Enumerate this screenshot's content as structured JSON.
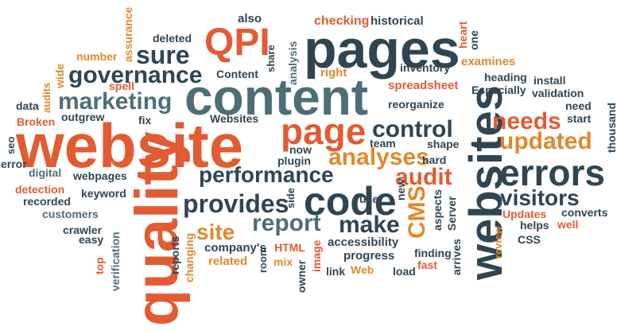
{
  "palette": {
    "dark": "#2f4553",
    "red": "#e25b33",
    "orange": "#e0892b",
    "slate": "#4e6e77"
  },
  "words": {
    "website": "website",
    "content": "content",
    "pages": "pages",
    "quality": "quality",
    "websites": "websites",
    "page": "page",
    "errors": "errors",
    "code": "code",
    "QPI": "QPI",
    "governance": "governance",
    "marketing": "marketing",
    "performance": "performance",
    "provides": "provides",
    "control": "control",
    "analyses": "analyses",
    "needs": "needs",
    "updated": "updated",
    "audit": "audit",
    "visitors": "visitors",
    "report": "report",
    "make": "make",
    "site": "site",
    "CMS": "CMS",
    "sure": "sure",
    "also": "also",
    "checking": "checking",
    "historical": "historical",
    "deleted": "deleted",
    "share": "share",
    "analysis": "analysis",
    "heart": "heart",
    "one": "one",
    "number": "number",
    "assurance": "assurance",
    "inventory": "inventory",
    "examines": "examines",
    "right": "right",
    "spell": "spell",
    "wide": "wide",
    "Content": "Content",
    "heading": "heading",
    "install": "install",
    "spreadsheet": "spreadsheet",
    "Especially": "Especially",
    "validation": "validation",
    "data": "data",
    "audits": "audits",
    "outgrew": "outgrew",
    "reorganize": "reorganize",
    "need": "need",
    "Broken": "Broken",
    "fix": "fix",
    "Websites": "Websites",
    "start": "start",
    "thousand": "thousand",
    "seo": "seo",
    "error": "error",
    "now": "now",
    "team": "team",
    "shape": "shape",
    "plugin": "plugin",
    "hard": "hard",
    "digital": "digital",
    "webpages": "webpages",
    "detection": "detection",
    "keyword": "keyword",
    "recorded": "recorded",
    "customers": "customers",
    "use": "use",
    "side": "side",
    "new": "new",
    "aspects": "aspects",
    "Server": "Server",
    "arrives": "arrives",
    "Updates": "Updates",
    "converts": "converts",
    "crawler": "crawler",
    "easy": "easy",
    "verification": "verification",
    "top": "top",
    "reports": "reports",
    "changing": "changing",
    "helps": "helps",
    "well": "well",
    "CSS": "CSS",
    "review": "review",
    "company's": "company's",
    "related": "related",
    "HTML": "HTML",
    "mix": "mix",
    "room": "room",
    "accessibility": "accessibility",
    "progress": "progress",
    "image": "image",
    "owner": "owner",
    "link": "link",
    "Web": "Web",
    "load": "load",
    "finding": "finding",
    "fast": "fast"
  }
}
